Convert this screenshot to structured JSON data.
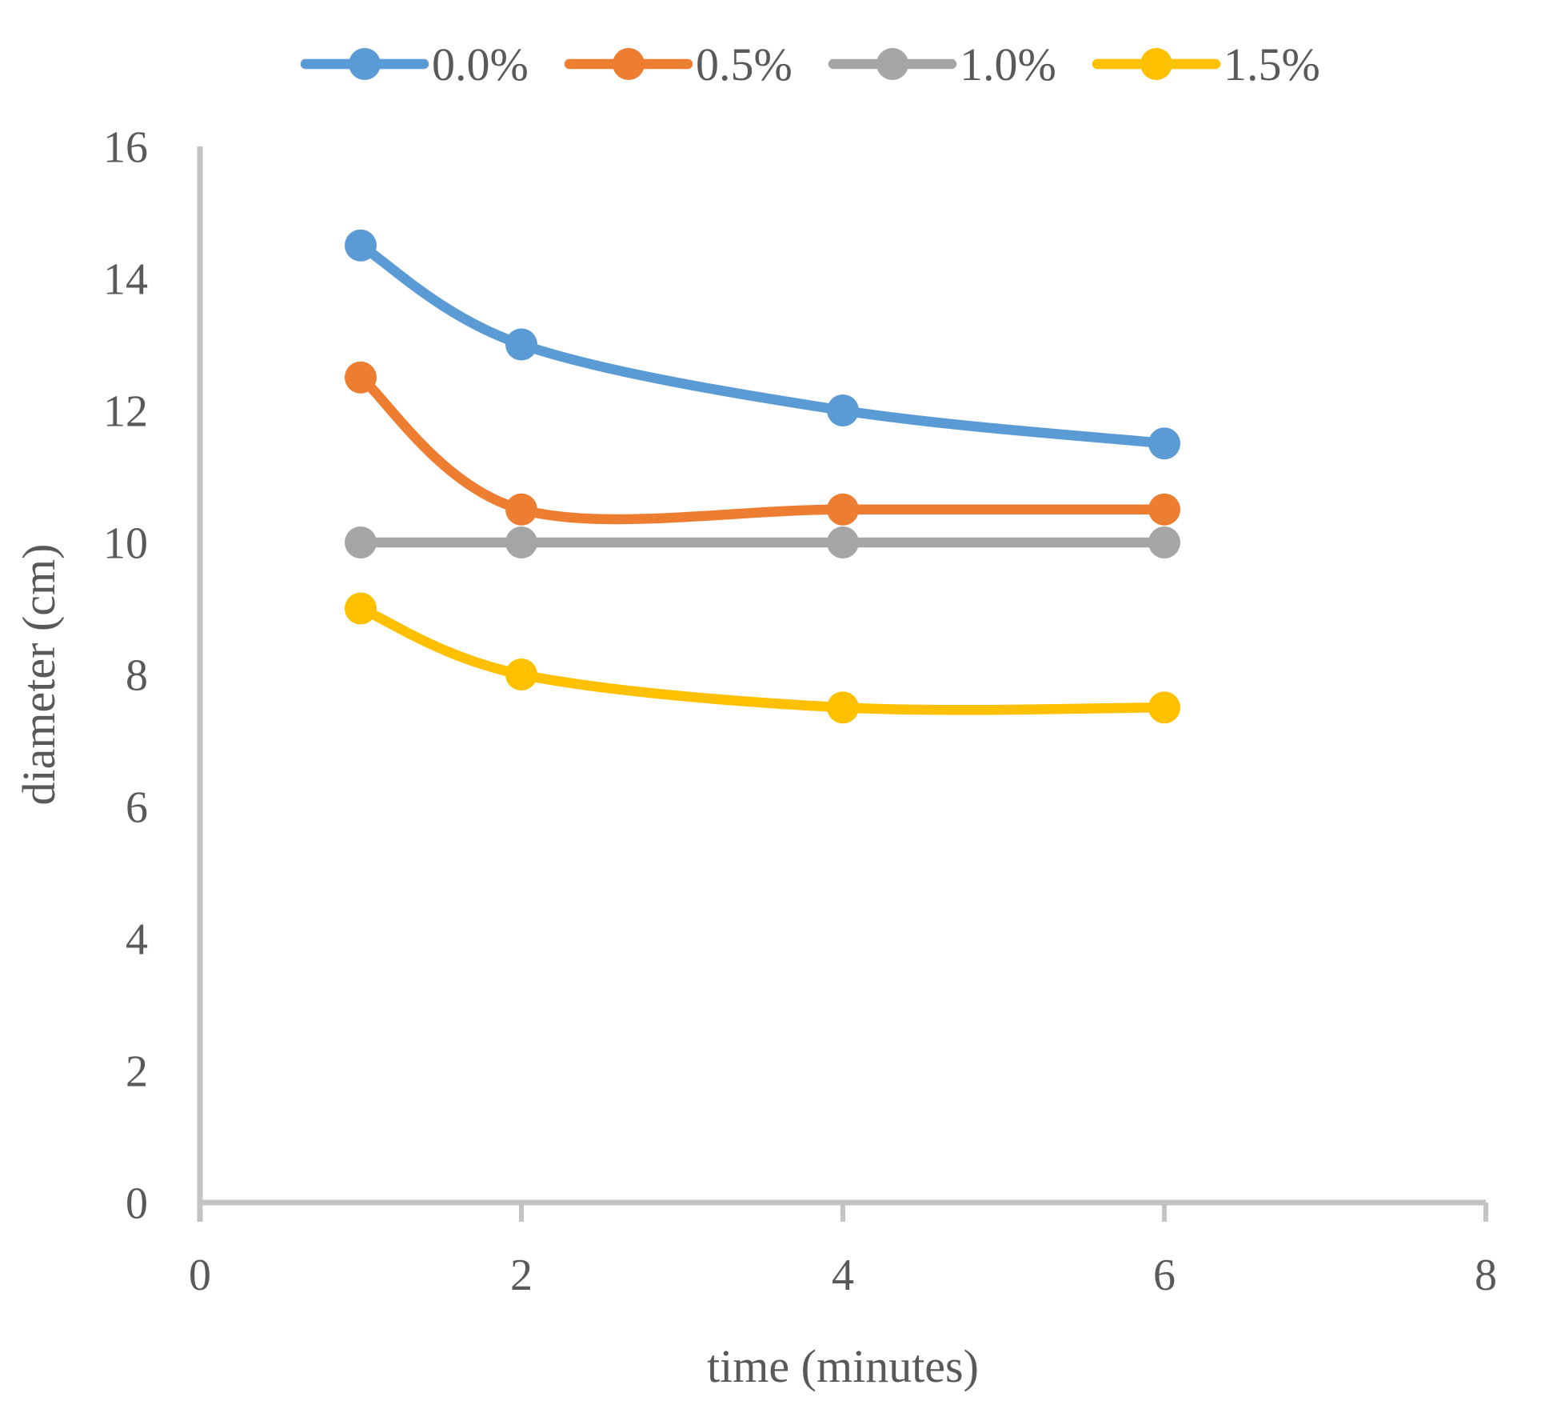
{
  "chart_data": {
    "type": "line",
    "title": "",
    "x": [
      1,
      2,
      4,
      6
    ],
    "series": [
      {
        "name": "0.0%",
        "color": "#5B9BD5",
        "values": [
          14.5,
          13.0,
          12.0,
          11.5
        ]
      },
      {
        "name": "0.5%",
        "color": "#ED7D31",
        "values": [
          12.5,
          10.5,
          10.5,
          10.5
        ]
      },
      {
        "name": "1.0%",
        "color": "#A5A5A5",
        "values": [
          10.0,
          10.0,
          10.0,
          10.0
        ]
      },
      {
        "name": "1.5%",
        "color": "#FFC000",
        "values": [
          9.0,
          8.0,
          7.5,
          7.5
        ]
      }
    ],
    "xlabel": "time (minutes)",
    "ylabel": "diameter (cm)",
    "xlim": [
      0,
      8
    ],
    "ylim": [
      0,
      16
    ],
    "x_ticks": [
      0,
      2,
      4,
      6,
      8
    ],
    "y_ticks": [
      0,
      2,
      4,
      6,
      8,
      10,
      12,
      14,
      16
    ],
    "legend_entries": [
      "0.0%",
      "0.5%",
      "1.0%",
      "1.5%"
    ],
    "legend_position": "top-center",
    "grid": false,
    "line_shape": "smooth",
    "marker": "circle",
    "colors": {
      "axis_line": "#C3C3C3",
      "text": "#595959",
      "background": "#FFFFFF"
    }
  }
}
